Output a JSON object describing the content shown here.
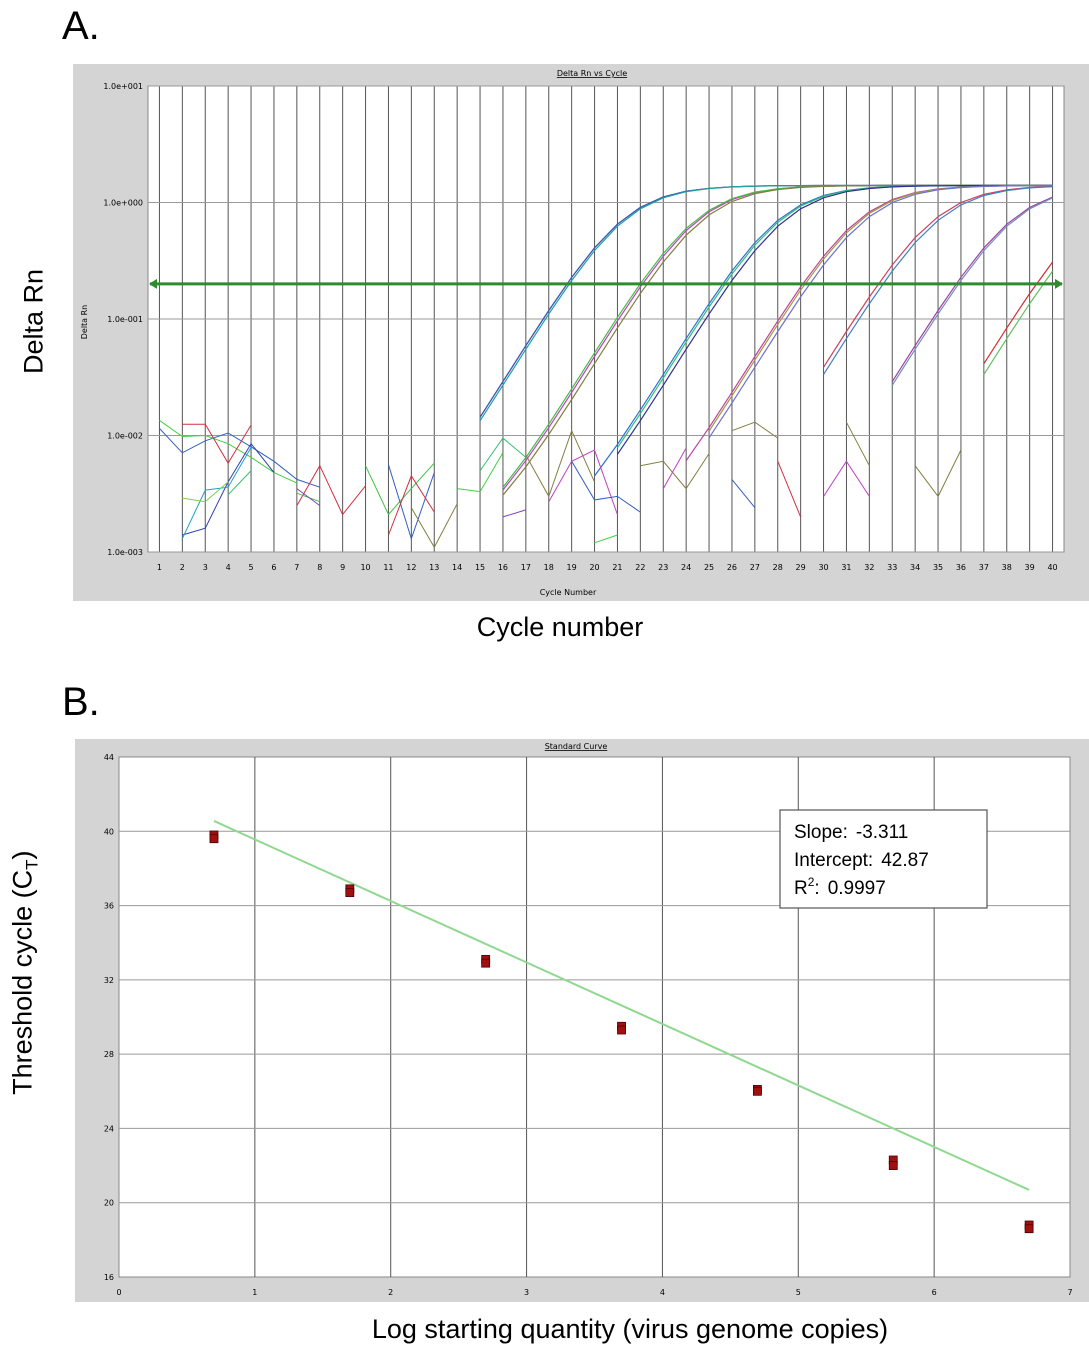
{
  "panels": {
    "a_label": "A.",
    "b_label": "B."
  },
  "chart_data": [
    {
      "type": "line",
      "title": "Delta Rn vs Cycle",
      "xlabel": "Cycle Number",
      "ylabel": "Delta Rn",
      "outer_xlabel": "Cycle number",
      "outer_ylabel": "Delta Rn",
      "yscale": "log",
      "ylim": [
        0.001,
        10
      ],
      "yticks": [
        "1.0e-003",
        "1.0e-002",
        "1.0e-001",
        "1.0e+000",
        "1.0e+001"
      ],
      "xlim": [
        0.5,
        40.5
      ],
      "xticks": [
        1,
        2,
        3,
        4,
        5,
        6,
        7,
        8,
        9,
        10,
        11,
        12,
        13,
        14,
        15,
        16,
        17,
        18,
        19,
        20,
        21,
        22,
        23,
        24,
        25,
        26,
        27,
        28,
        29,
        30,
        31,
        32,
        33,
        34,
        35,
        36,
        37,
        38,
        39,
        40
      ],
      "grid": true,
      "threshold": 0.2,
      "threshold_color": "#2e8b2e",
      "amplification_series": [
        {
          "color": "#d03040",
          "start": 15,
          "ct": 18.8
        },
        {
          "color": "#3060c0",
          "start": 15,
          "ct": 18.8
        },
        {
          "color": "#20a0a0",
          "start": 15,
          "ct": 18.9
        },
        {
          "color": "#c040c0",
          "start": 16,
          "ct": 22.1
        },
        {
          "color": "#40c040",
          "start": 16,
          "ct": 22.0
        },
        {
          "color": "#808040",
          "start": 16,
          "ct": 22.3
        },
        {
          "color": "#3070d0",
          "start": 20,
          "ct": 25.6
        },
        {
          "color": "#30c070",
          "start": 21,
          "ct": 25.7
        },
        {
          "color": "#303090",
          "start": 21,
          "ct": 25.9
        },
        {
          "color": "#c040a0",
          "start": 24,
          "ct": 29.1
        },
        {
          "color": "#9c9c40",
          "start": 25,
          "ct": 29.2
        },
        {
          "color": "#7070d0",
          "start": 25,
          "ct": 29.4
        },
        {
          "color": "#d04060",
          "start": 30,
          "ct": 32.4
        },
        {
          "color": "#4080c0",
          "start": 30,
          "ct": 32.6
        },
        {
          "color": "#a040a0",
          "start": 33,
          "ct": 35.8
        },
        {
          "color": "#7090c0",
          "start": 33,
          "ct": 35.9
        },
        {
          "color": "#d03030",
          "start": 37,
          "ct": 39.3
        },
        {
          "color": "#60c060",
          "start": 37,
          "ct": 39.6
        }
      ],
      "noise_series": [
        {
          "color": "#3060c0",
          "x": [
            1,
            2,
            3,
            4,
            5,
            6,
            7,
            8
          ],
          "y": [
            0.0115,
            0.0071,
            0.009,
            0.0105,
            0.008,
            0.006,
            0.0042,
            0.0036
          ]
        },
        {
          "color": "#40d040",
          "x": [
            1,
            2,
            3,
            4,
            5,
            6,
            7
          ],
          "y": [
            0.0135,
            0.0098,
            0.01,
            0.0085,
            0.0065,
            0.0048,
            0.0039
          ]
        },
        {
          "color": "#d03040",
          "x": [
            2,
            3,
            4,
            5
          ],
          "y": [
            0.0125,
            0.0125,
            0.0058,
            0.0123
          ]
        },
        {
          "color": "#3040b0",
          "x": [
            2,
            3,
            4,
            5,
            6
          ],
          "y": [
            0.0014,
            0.0016,
            0.004,
            0.0085,
            0.0048
          ]
        },
        {
          "color": "#20a0c0",
          "x": [
            2,
            3,
            4,
            5
          ],
          "y": [
            0.0013,
            0.0034,
            0.0036,
            0.0079
          ]
        },
        {
          "color": "#80d040",
          "x": [
            2,
            3,
            4
          ],
          "y": [
            0.0029,
            0.0027,
            0.004
          ]
        },
        {
          "color": "#30c070",
          "x": [
            4,
            5
          ],
          "y": [
            0.0031,
            0.005
          ]
        },
        {
          "color": "#d03040",
          "x": [
            7,
            8,
            9,
            10
          ],
          "y": [
            0.0025,
            0.0055,
            0.0021,
            0.0037
          ]
        },
        {
          "color": "#40c040",
          "x": [
            7,
            8
          ],
          "y": [
            0.0032,
            0.0027
          ]
        },
        {
          "color": "#8040c0",
          "x": [
            7,
            8
          ],
          "y": [
            0.0035,
            0.0025
          ]
        },
        {
          "color": "#40c040",
          "x": [
            10,
            11,
            12,
            13
          ],
          "y": [
            0.0055,
            0.0021,
            0.0035,
            0.0058
          ]
        },
        {
          "color": "#3060c0",
          "x": [
            11,
            12,
            13
          ],
          "y": [
            0.0056,
            0.0013,
            0.0048
          ]
        },
        {
          "color": "#d03040",
          "x": [
            11,
            12,
            13
          ],
          "y": [
            0.0014,
            0.0045,
            0.0022
          ]
        },
        {
          "color": "#808040",
          "x": [
            12,
            13,
            14
          ],
          "y": [
            0.0024,
            0.0011,
            0.0026
          ]
        },
        {
          "color": "#40d040",
          "x": [
            14,
            15,
            16
          ],
          "y": [
            0.0035,
            0.0033,
            0.0071
          ]
        },
        {
          "color": "#30c070",
          "x": [
            15,
            16,
            17
          ],
          "y": [
            0.005,
            0.0095,
            0.0065
          ]
        },
        {
          "color": "#8040c0",
          "x": [
            16,
            17
          ],
          "y": [
            0.002,
            0.0023
          ]
        },
        {
          "color": "#808040",
          "x": [
            17,
            18,
            19,
            20
          ],
          "y": [
            0.0068,
            0.003,
            0.011,
            0.004
          ]
        },
        {
          "color": "#c040c0",
          "x": [
            18,
            19,
            20,
            21
          ],
          "y": [
            0.0027,
            0.006,
            0.0075,
            0.0021
          ]
        },
        {
          "color": "#3060c0",
          "x": [
            19,
            20,
            21,
            22
          ],
          "y": [
            0.006,
            0.0028,
            0.003,
            0.0022
          ]
        },
        {
          "color": "#40d040",
          "x": [
            20,
            21
          ],
          "y": [
            0.0012,
            0.0014
          ]
        },
        {
          "color": "#808040",
          "x": [
            22,
            23,
            24,
            25
          ],
          "y": [
            0.0055,
            0.006,
            0.0035,
            0.007
          ]
        },
        {
          "color": "#c040c0",
          "x": [
            23,
            24
          ],
          "y": [
            0.0035,
            0.0078
          ]
        },
        {
          "color": "#808040",
          "x": [
            26,
            27,
            28
          ],
          "y": [
            0.011,
            0.013,
            0.0095
          ]
        },
        {
          "color": "#d03040",
          "x": [
            28,
            29
          ],
          "y": [
            0.006,
            0.002
          ]
        },
        {
          "color": "#3060c0",
          "x": [
            26,
            27
          ],
          "y": [
            0.0042,
            0.0024
          ]
        },
        {
          "color": "#808040",
          "x": [
            31,
            32
          ],
          "y": [
            0.013,
            0.0055
          ]
        },
        {
          "color": "#c040c0",
          "x": [
            30,
            31,
            32
          ],
          "y": [
            0.003,
            0.006,
            0.003
          ]
        },
        {
          "color": "#808040",
          "x": [
            34,
            35,
            36
          ],
          "y": [
            0.0055,
            0.003,
            0.0075
          ]
        }
      ]
    },
    {
      "type": "scatter",
      "title": "Standard Curve",
      "xlabel": "Log starting quantity (virus genome copies)",
      "ylabel_main": "Threshold cycle (C",
      "ylabel_sub": "T",
      "ylabel_end": ")",
      "xlim": [
        0,
        7
      ],
      "ylim": [
        16,
        44
      ],
      "xticks": [
        0,
        1,
        2,
        3,
        4,
        5,
        6,
        7
      ],
      "yticks": [
        16,
        20,
        24,
        28,
        32,
        36,
        40,
        44
      ],
      "grid": true,
      "points": [
        {
          "x": 0.699,
          "y": 39.8
        },
        {
          "x": 0.699,
          "y": 39.6
        },
        {
          "x": 1.699,
          "y": 36.9
        },
        {
          "x": 1.699,
          "y": 36.7
        },
        {
          "x": 2.699,
          "y": 33.1
        },
        {
          "x": 2.699,
          "y": 32.9
        },
        {
          "x": 3.699,
          "y": 29.5
        },
        {
          "x": 3.699,
          "y": 29.3
        },
        {
          "x": 4.699,
          "y": 26.1
        },
        {
          "x": 4.699,
          "y": 26.0
        },
        {
          "x": 5.699,
          "y": 22.3
        },
        {
          "x": 5.699,
          "y": 22.0
        },
        {
          "x": 6.699,
          "y": 18.8
        },
        {
          "x": 6.699,
          "y": 18.6
        }
      ],
      "fit": {
        "slope": -3.311,
        "intercept": 42.87,
        "x_range": [
          0.699,
          6.699
        ]
      },
      "point_color": "#a01010",
      "fit_color": "#90d890",
      "annotation": {
        "slope_label": "Slope:",
        "slope_value": "-3.311",
        "intercept_label": "Intercept:",
        "intercept_value": "42.87",
        "r2_label": "R",
        "r2_sup": "2",
        "r2_colon": ":",
        "r2_value": "0.9997"
      }
    }
  ]
}
